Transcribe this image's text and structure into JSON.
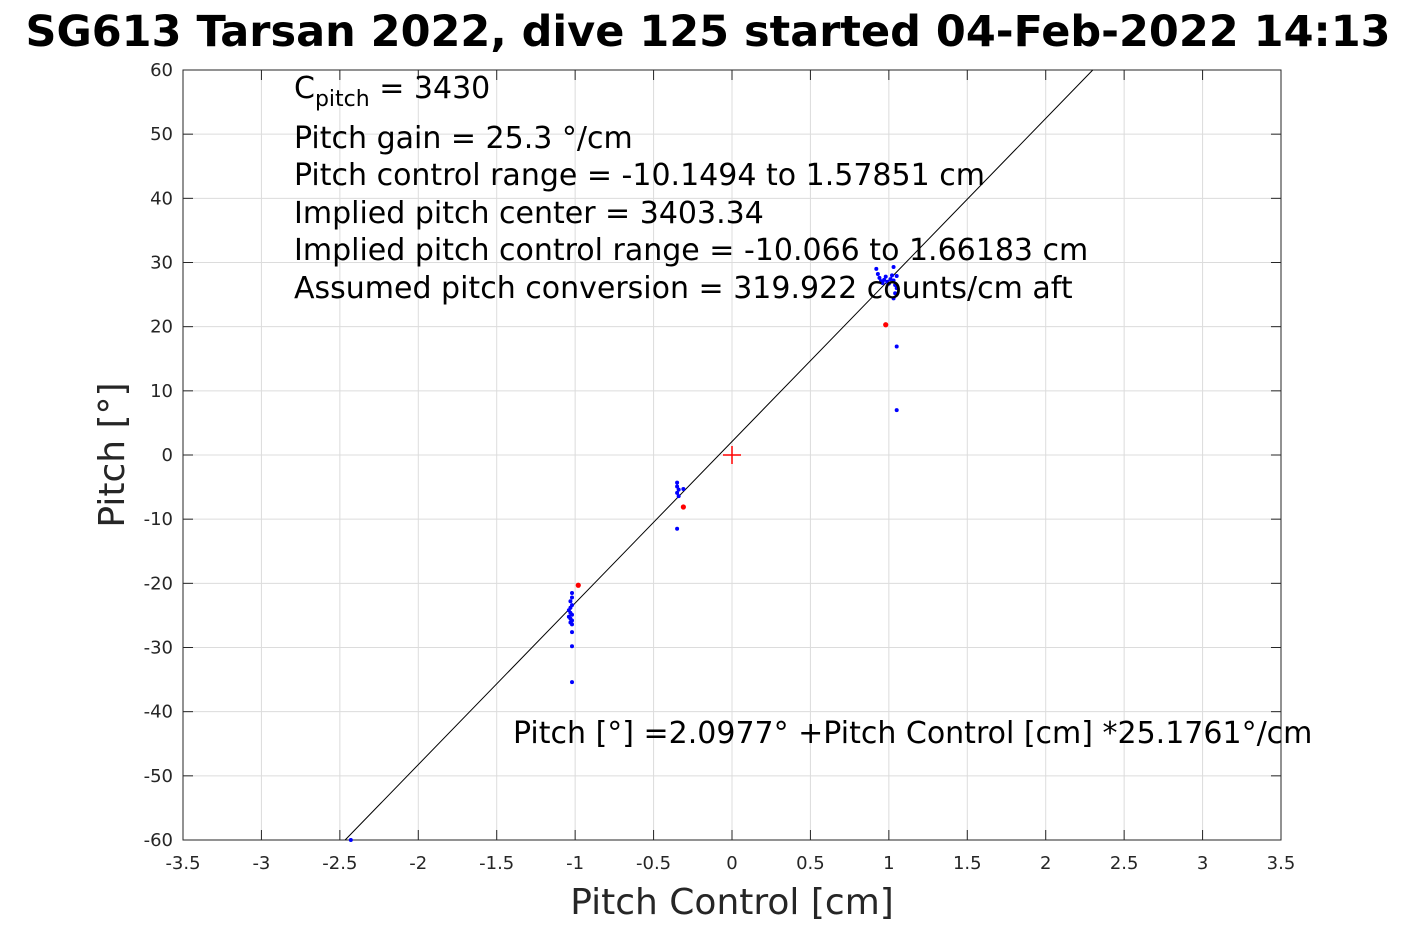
{
  "chart_data": {
    "type": "scatter",
    "title": "SG613 Tarsan 2022, dive 125 started 04-Feb-2022 14:13",
    "xlabel": "Pitch Control [cm]",
    "ylabel": "Pitch [°]",
    "xlim": [
      -3.5,
      3.5
    ],
    "ylim": [
      -60,
      60
    ],
    "grid": true,
    "x_ticks": [
      -3.5,
      -3,
      -2.5,
      -2,
      -1.5,
      -1,
      -0.5,
      0,
      0.5,
      1,
      1.5,
      2,
      2.5,
      3,
      3.5
    ],
    "x_tick_labels": [
      "-3.5",
      "-3",
      "-2.5",
      "-2",
      "-1.5",
      "-1",
      "-0.5",
      "0",
      "0.5",
      "1",
      "1.5",
      "2",
      "2.5",
      "3",
      "3.5"
    ],
    "y_ticks": [
      60,
      50,
      40,
      30,
      20,
      10,
      0,
      -10,
      -20,
      -30,
      -40,
      -50,
      -60
    ],
    "y_tick_labels": [
      "60",
      "50",
      "40",
      "30",
      "20",
      "10",
      "0",
      "-10",
      "-20",
      "-30",
      "-40",
      "-50",
      "-60"
    ],
    "colors": {
      "blue_points": "#0000ff",
      "red_points": "#ff0000",
      "fit_line": "#000000",
      "grid": "#dcdcdc",
      "center_marker": "#ff0000"
    },
    "series": [
      {
        "values": [
          [
            -1.02,
            -21.5
          ],
          [
            -1.02,
            -22.2
          ],
          [
            -1.03,
            -22.8
          ],
          [
            -1.02,
            -23.4
          ],
          [
            -1.03,
            -23.8
          ],
          [
            -1.04,
            -24.2
          ],
          [
            -1.03,
            -24.6
          ],
          [
            -1.02,
            -24.9
          ],
          [
            -1.04,
            -25.2
          ],
          [
            -1.03,
            -25.5
          ],
          [
            -1.02,
            -25.8
          ],
          [
            -1.03,
            -26.1
          ],
          [
            -1.02,
            -26.4
          ],
          [
            -1.02,
            -27.6
          ],
          [
            -1.02,
            -29.8
          ],
          [
            -1.02,
            -35.4
          ],
          [
            -0.35,
            -4.3
          ],
          [
            -0.35,
            -4.9
          ],
          [
            -0.34,
            -5.4
          ],
          [
            -0.35,
            -5.9
          ],
          [
            -0.34,
            -6.4
          ],
          [
            -0.31,
            -5.3
          ],
          [
            -0.35,
            -11.5
          ],
          [
            0.92,
            29.0
          ],
          [
            0.93,
            28.2
          ],
          [
            0.94,
            27.6
          ],
          [
            0.95,
            27.1
          ],
          [
            0.96,
            26.8
          ],
          [
            0.97,
            27.3
          ],
          [
            0.98,
            27.8
          ],
          [
            0.99,
            27.0
          ],
          [
            1.0,
            26.7
          ],
          [
            1.01,
            27.4
          ],
          [
            1.02,
            28.0
          ],
          [
            1.03,
            27.2
          ],
          [
            1.04,
            26.5
          ],
          [
            1.05,
            27.9
          ],
          [
            1.03,
            29.3
          ],
          [
            1.04,
            25.2
          ],
          [
            1.03,
            24.4
          ],
          [
            1.05,
            26.0
          ],
          [
            1.05,
            16.9
          ],
          [
            1.05,
            7.0
          ],
          [
            -2.43,
            -60.0
          ]
        ]
      },
      {
        "values": [
          [
            -0.98,
            -20.3
          ],
          [
            -0.31,
            -8.1
          ],
          [
            0.98,
            20.3
          ]
        ]
      }
    ],
    "fit_line": {
      "intercept": 2.0977,
      "slope": 25.1761
    },
    "center_marker": [
      0,
      0
    ],
    "annotations": {
      "c_pitch_main": "C",
      "c_pitch_sub": "pitch",
      "c_pitch_value": " = 3430",
      "pitch_gain": "Pitch gain = 25.3 °/cm",
      "control_range": "Pitch control range = -10.1494 to 1.57851 cm",
      "implied_center": "Implied pitch center = 3403.34",
      "implied_range": "Implied pitch control range = -10.066 to 1.66183 cm",
      "conversion": "Assumed pitch conversion = 319.922 counts/cm aft",
      "fit_equation": "Pitch [°] =2.0977° +Pitch Control [cm] *25.1761°/cm"
    }
  }
}
